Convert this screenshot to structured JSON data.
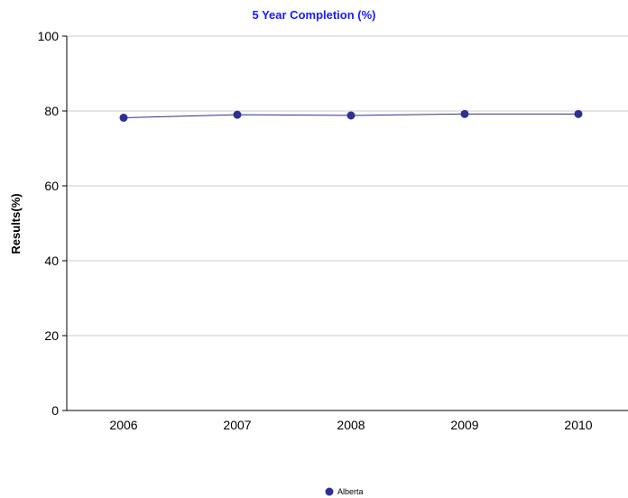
{
  "chart_data": {
    "type": "line",
    "title": "5 Year Completion (%)",
    "xlabel": "",
    "ylabel": "Results(%)",
    "categories": [
      "2006",
      "2007",
      "2008",
      "2009",
      "2010"
    ],
    "series": [
      {
        "name": "Alberta",
        "values": [
          78.2,
          79.0,
          78.8,
          79.2,
          79.2
        ]
      }
    ],
    "ylim": [
      0,
      100
    ],
    "yticks": [
      "0",
      "20",
      "40",
      "60",
      "80",
      "100"
    ],
    "grid": true,
    "legend_position": "bottom-center",
    "colors": {
      "title": "#1a1aff",
      "series": "#2e3192",
      "grid": "#cccccc",
      "axis": "#000000"
    }
  }
}
